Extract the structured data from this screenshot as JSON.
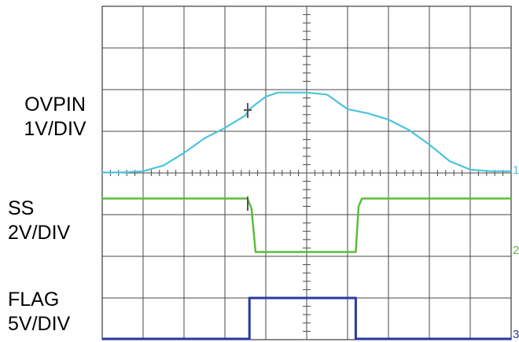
{
  "chart_data": {
    "type": "line",
    "title": "",
    "xlabel": "",
    "ylabel": "",
    "grid": true,
    "divisions": {
      "x": 10,
      "y": 8
    },
    "series": [
      {
        "name": "OVPIN",
        "scale": "1V/DIV",
        "marker": "1",
        "color": "#4cc4dc",
        "unit": "V",
        "points": [
          [
            0,
            0.03
          ],
          [
            0.5,
            0.03
          ],
          [
            1.0,
            0.06
          ],
          [
            1.5,
            0.2
          ],
          [
            2.0,
            0.5
          ],
          [
            2.5,
            0.85
          ],
          [
            3.0,
            1.1
          ],
          [
            3.5,
            1.4
          ],
          [
            3.6,
            1.55
          ],
          [
            4.0,
            1.85
          ],
          [
            4.3,
            1.95
          ],
          [
            5.0,
            1.95
          ],
          [
            5.5,
            1.9
          ],
          [
            6.0,
            1.55
          ],
          [
            6.5,
            1.45
          ],
          [
            7.0,
            1.3
          ],
          [
            7.5,
            1.05
          ],
          [
            8.0,
            0.7
          ],
          [
            8.5,
            0.3
          ],
          [
            9.0,
            0.1
          ],
          [
            9.5,
            0.06
          ],
          [
            10.0,
            0.06
          ]
        ]
      },
      {
        "name": "SS",
        "scale": "2V/DIV",
        "marker": "2",
        "color": "#5cbc3c",
        "unit": "V",
        "points": [
          [
            0,
            2.8
          ],
          [
            3.55,
            2.8
          ],
          [
            3.65,
            2.3
          ],
          [
            3.75,
            0.1
          ],
          [
            6.2,
            0.1
          ],
          [
            6.27,
            2.4
          ],
          [
            6.35,
            2.8
          ],
          [
            10.0,
            2.8
          ]
        ]
      },
      {
        "name": "FLAG",
        "scale": "5V/DIV",
        "marker": "3",
        "color": "#2a3a9c",
        "unit": "V",
        "points": [
          [
            0,
            0
          ],
          [
            3.6,
            0
          ],
          [
            3.6,
            5.0
          ],
          [
            6.2,
            5.0
          ],
          [
            6.2,
            0
          ],
          [
            10.0,
            0
          ]
        ]
      }
    ]
  }
}
